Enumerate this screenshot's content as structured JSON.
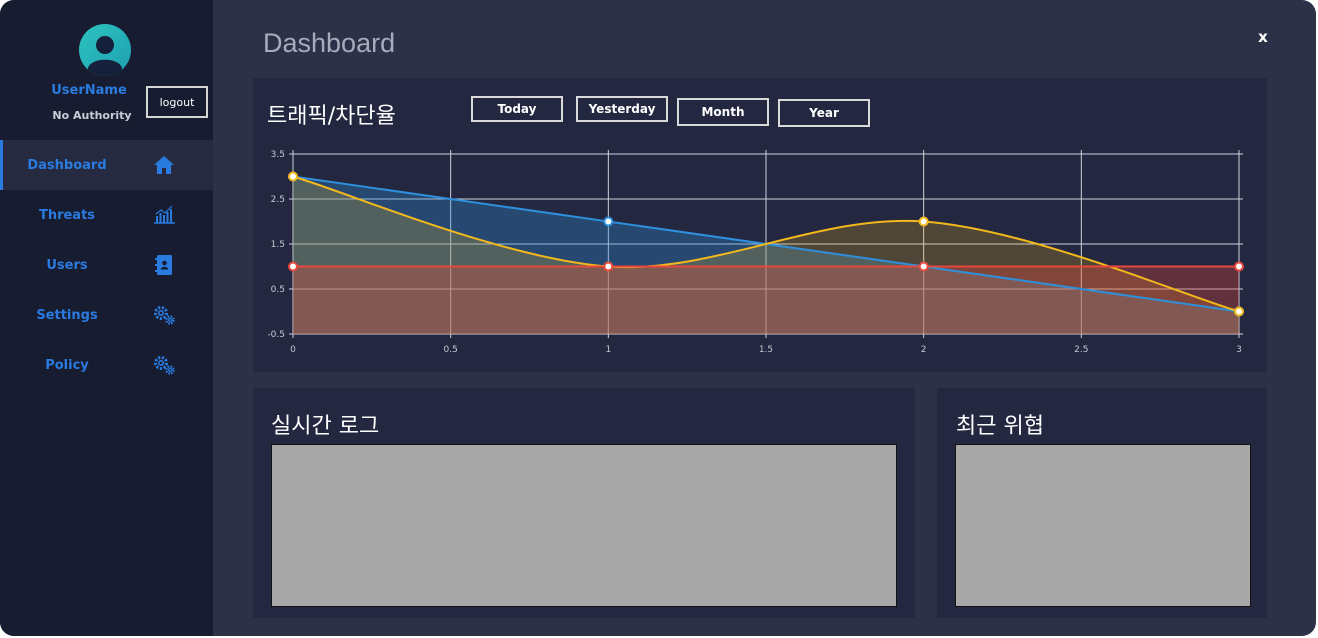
{
  "user": {
    "name": "UserName",
    "authority": "No Authority",
    "logout_label": "logout"
  },
  "nav": {
    "items": [
      {
        "label": "Dashboard",
        "icon": "home-icon",
        "active": true
      },
      {
        "label": "Threats",
        "icon": "bar-chart-icon",
        "active": false
      },
      {
        "label": "Users",
        "icon": "contact-book-icon",
        "active": false
      },
      {
        "label": "Settings",
        "icon": "gears-icon",
        "active": false
      },
      {
        "label": "Policy",
        "icon": "gears-icon",
        "active": false
      }
    ]
  },
  "header": {
    "title": "Dashboard",
    "close_label": "x"
  },
  "traffic": {
    "title": "트래픽/차단율",
    "ranges": [
      "Today",
      "Yesterday",
      "Month",
      "Year"
    ]
  },
  "log": {
    "title": "실시간 로그"
  },
  "threats": {
    "title": "최근 위협"
  },
  "colors": {
    "accent": "#2a7be0",
    "series_blue": "#2f8fdb",
    "series_yellow": "#f2b81c",
    "series_red": "#e8483c",
    "panel": "#232740",
    "background": "#2d3148",
    "sidebar": "#181c30"
  },
  "chart_data": {
    "type": "line",
    "x_ticks": [
      "0",
      "0.5",
      "1",
      "1.5",
      "2",
      "2.5",
      "3"
    ],
    "y_ticks": [
      "3.5",
      "2.5",
      "1.5",
      "0.5",
      "-0.5"
    ],
    "xlim": [
      0,
      3
    ],
    "ylim": [
      -0.5,
      3.5
    ],
    "grid": true,
    "series": [
      {
        "x": [
          0,
          1,
          2,
          3
        ],
        "y": [
          3,
          2,
          1,
          0
        ],
        "color": "#2f8fdb",
        "fill": true,
        "smooth": false
      },
      {
        "x": [
          0,
          1,
          2,
          3
        ],
        "y": [
          3,
          1,
          2,
          0
        ],
        "color": "#f2b81c",
        "fill": true,
        "smooth": true
      },
      {
        "x": [
          0,
          1,
          2,
          3
        ],
        "y": [
          1,
          1,
          1,
          1
        ],
        "color": "#e8483c",
        "fill": true,
        "smooth": false
      }
    ]
  }
}
